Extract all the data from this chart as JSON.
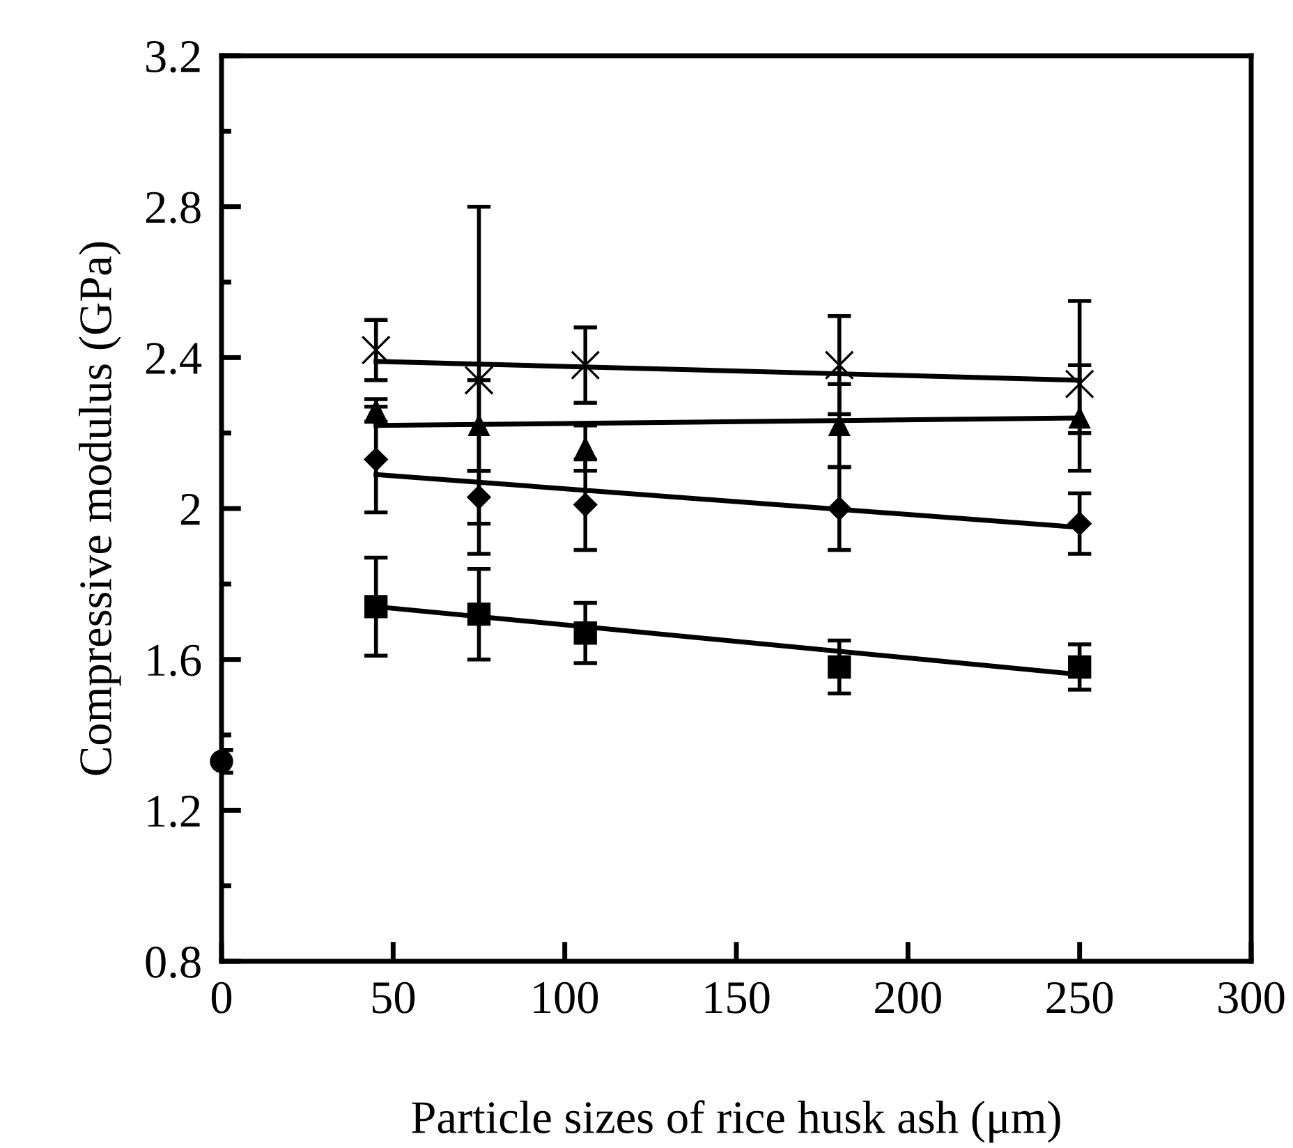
{
  "chart_data": {
    "type": "scatter",
    "xlabel": "Particle sizes of rice husk ash (μm)",
    "ylabel": "Compressive modulus (GPa)",
    "xlim": [
      0,
      300
    ],
    "xticks": [
      0,
      50,
      100,
      150,
      200,
      250,
      300
    ],
    "ylim": [
      0.8,
      3.2
    ],
    "yticks": [
      0.8,
      {
        "value": 1.0,
        "label": null
      },
      1.2,
      {
        "value": 1.4,
        "label": null
      },
      1.6,
      {
        "value": 1.8,
        "label": null
      },
      2,
      {
        "value": 2.2,
        "label": null
      },
      2.4,
      {
        "value": 2.6,
        "label": null
      },
      2.8,
      {
        "value": 3.0,
        "label": null
      },
      3.2
    ],
    "grid": false,
    "legend": false,
    "series": [
      {
        "marker": "circle",
        "color": "#000000",
        "x": [
          0
        ],
        "values": [
          1.33
        ],
        "errors": [
          0.03
        ]
      },
      {
        "marker": "square",
        "color": "#000000",
        "x": [
          45,
          75,
          106,
          180,
          250
        ],
        "values": [
          1.74,
          1.72,
          1.67,
          1.58,
          1.58
        ],
        "errors": [
          0.13,
          0.12,
          0.08,
          0.07,
          0.06
        ]
      },
      {
        "marker": "diamond",
        "color": "#000000",
        "x": [
          45,
          75,
          106,
          180,
          250
        ],
        "values": [
          2.13,
          2.03,
          2.01,
          2.0,
          1.96
        ],
        "errors": [
          0.14,
          0.07,
          0.12,
          0.11,
          0.08
        ]
      },
      {
        "marker": "triangle",
        "color": "#000000",
        "x": [
          45,
          75,
          106,
          180,
          250
        ],
        "values": [
          2.26,
          2.22,
          2.16,
          2.22,
          2.24
        ],
        "errors": [
          0.03,
          0.12,
          0.06,
          0.11,
          0.14
        ]
      },
      {
        "marker": "cross",
        "color": "#000000",
        "x": [
          45,
          75,
          106,
          180,
          250
        ],
        "values": [
          2.42,
          2.34,
          2.38,
          2.38,
          2.33
        ],
        "errors": [
          0.08,
          0.46,
          0.1,
          0.13,
          [
            2.2,
            2.55
          ]
        ]
      },
      {
        "type": "line",
        "marker": "none",
        "line_style": "solid",
        "color": "#000000",
        "x": [
          45,
          250
        ],
        "values": [
          1.74,
          1.56
        ]
      },
      {
        "type": "line",
        "marker": "none",
        "line_style": "solid",
        "color": "#000000",
        "x": [
          45,
          250
        ],
        "values": [
          2.09,
          1.95
        ]
      },
      {
        "type": "line",
        "marker": "none",
        "line_style": "solid",
        "color": "#000000",
        "x": [
          45,
          250
        ],
        "values": [
          2.22,
          2.24
        ]
      },
      {
        "type": "line",
        "marker": "none",
        "line_style": "solid",
        "color": "#000000",
        "x": [
          45,
          250
        ],
        "values": [
          2.39,
          2.34
        ]
      }
    ]
  }
}
